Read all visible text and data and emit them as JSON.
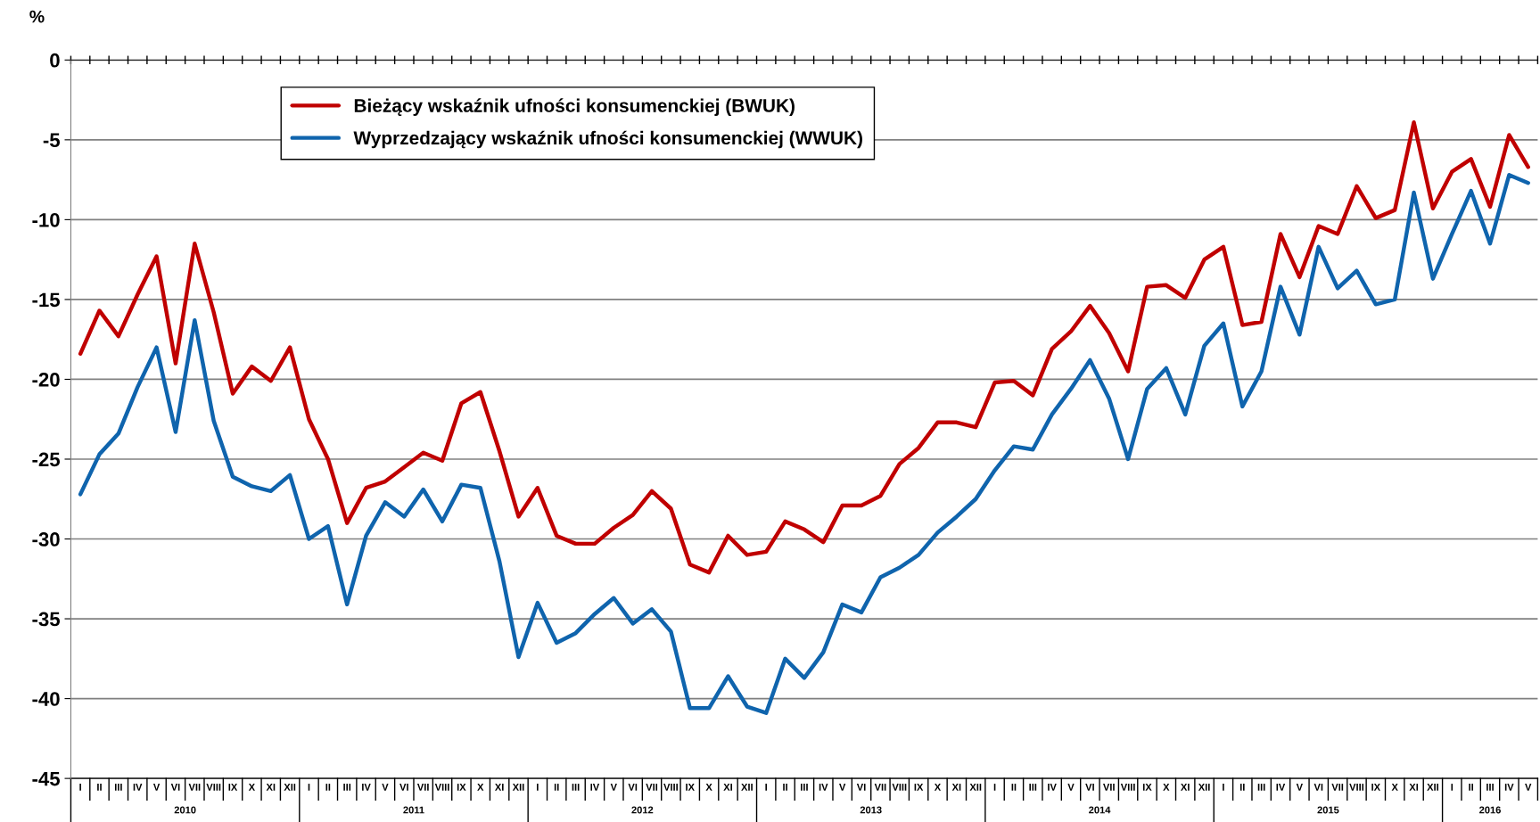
{
  "chart_data": {
    "type": "line",
    "ylabel": "%",
    "categories": [
      "I",
      "II",
      "III",
      "IV",
      "V",
      "VI",
      "VII",
      "VIII",
      "IX",
      "X",
      "XI",
      "XII",
      "I",
      "II",
      "III",
      "IV",
      "V",
      "VI",
      "VII",
      "VIII",
      "IX",
      "X",
      "XI",
      "XII",
      "I",
      "II",
      "III",
      "IV",
      "V",
      "VI",
      "VII",
      "VIII",
      "IX",
      "X",
      "XI",
      "XII",
      "I",
      "II",
      "III",
      "IV",
      "V",
      "VI",
      "VII",
      "VIII",
      "IX",
      "X",
      "XI",
      "XII",
      "I",
      "II",
      "III",
      "IV",
      "V",
      "VI",
      "VII",
      "VIII",
      "IX",
      "X",
      "XI",
      "XII",
      "I",
      "II",
      "III",
      "IV",
      "V",
      "VI",
      "VII",
      "VIII",
      "IX",
      "X",
      "XI",
      "XII",
      "I",
      "II",
      "III",
      "IV",
      "V"
    ],
    "series": [
      {
        "name": "Bieżący wskaźnik ufności konsumenckiej (BWUK)",
        "color": "#c00000",
        "values": [
          -18.4,
          -15.7,
          -17.3,
          -14.7,
          -12.3,
          -19.0,
          -11.5,
          -15.8,
          -20.9,
          -19.2,
          -20.1,
          -18.0,
          -22.5,
          -25.0,
          -29.0,
          -26.8,
          -26.4,
          -25.5,
          -24.6,
          -25.1,
          -21.5,
          -20.8,
          -24.5,
          -28.6,
          -26.8,
          -29.8,
          -30.3,
          -30.3,
          -29.3,
          -28.5,
          -27.0,
          -28.1,
          -31.6,
          -32.1,
          -29.8,
          -31.0,
          -30.8,
          -28.9,
          -29.4,
          -30.2,
          -27.9,
          -27.9,
          -27.3,
          -25.3,
          -24.3,
          -22.7,
          -22.7,
          -23.0,
          -20.2,
          -20.1,
          -21.0,
          -18.1,
          -17.0,
          -15.4,
          -17.1,
          -19.5,
          -14.2,
          -14.1,
          -14.9,
          -12.5,
          -11.7,
          -16.6,
          -16.4,
          -10.9,
          -13.6,
          -10.4,
          -10.9,
          -7.9,
          -9.9,
          -9.4,
          -3.9,
          -9.3,
          -7.0,
          -6.2,
          -9.2,
          -4.7,
          -6.7
        ]
      },
      {
        "name": "Wyprzedzający wskaźnik ufności konsumenckiej (WWUK)",
        "color": "#0f64ad",
        "values": [
          -27.2,
          -24.7,
          -23.4,
          -20.5,
          -18.0,
          -23.3,
          -16.3,
          -22.6,
          -26.1,
          -26.7,
          -27.0,
          -26.0,
          -30.0,
          -29.2,
          -34.1,
          -29.8,
          -27.7,
          -28.6,
          -26.9,
          -28.9,
          -26.6,
          -26.8,
          -31.4,
          -37.4,
          -34.0,
          -36.5,
          -35.9,
          -34.7,
          -33.7,
          -35.3,
          -34.4,
          -35.8,
          -40.6,
          -40.6,
          -38.6,
          -40.5,
          -40.9,
          -37.5,
          -38.7,
          -37.1,
          -34.1,
          -34.6,
          -32.4,
          -31.8,
          -31.0,
          -29.6,
          -28.6,
          -27.5,
          -25.7,
          -24.2,
          -24.4,
          -22.2,
          -20.6,
          -18.8,
          -21.2,
          -25.0,
          -20.6,
          -19.3,
          -22.2,
          -17.9,
          -16.5,
          -21.7,
          -19.5,
          -14.2,
          -17.2,
          -11.7,
          -14.3,
          -13.2,
          -15.3,
          -15.0,
          -8.3,
          -13.7,
          -10.9,
          -8.2,
          -11.5,
          -7.2,
          -7.7
        ]
      }
    ],
    "ylim": [
      -45,
      0
    ],
    "yticks": [
      0,
      -5,
      -10,
      -15,
      -20,
      -25,
      -30,
      -35,
      -40,
      -45
    ],
    "grid": "y",
    "legend": "top left",
    "marker": "none",
    "line_style": "solid",
    "annotations": [
      "2010",
      "2011",
      "2012",
      "2013",
      "2014",
      "2015",
      "2016"
    ]
  }
}
